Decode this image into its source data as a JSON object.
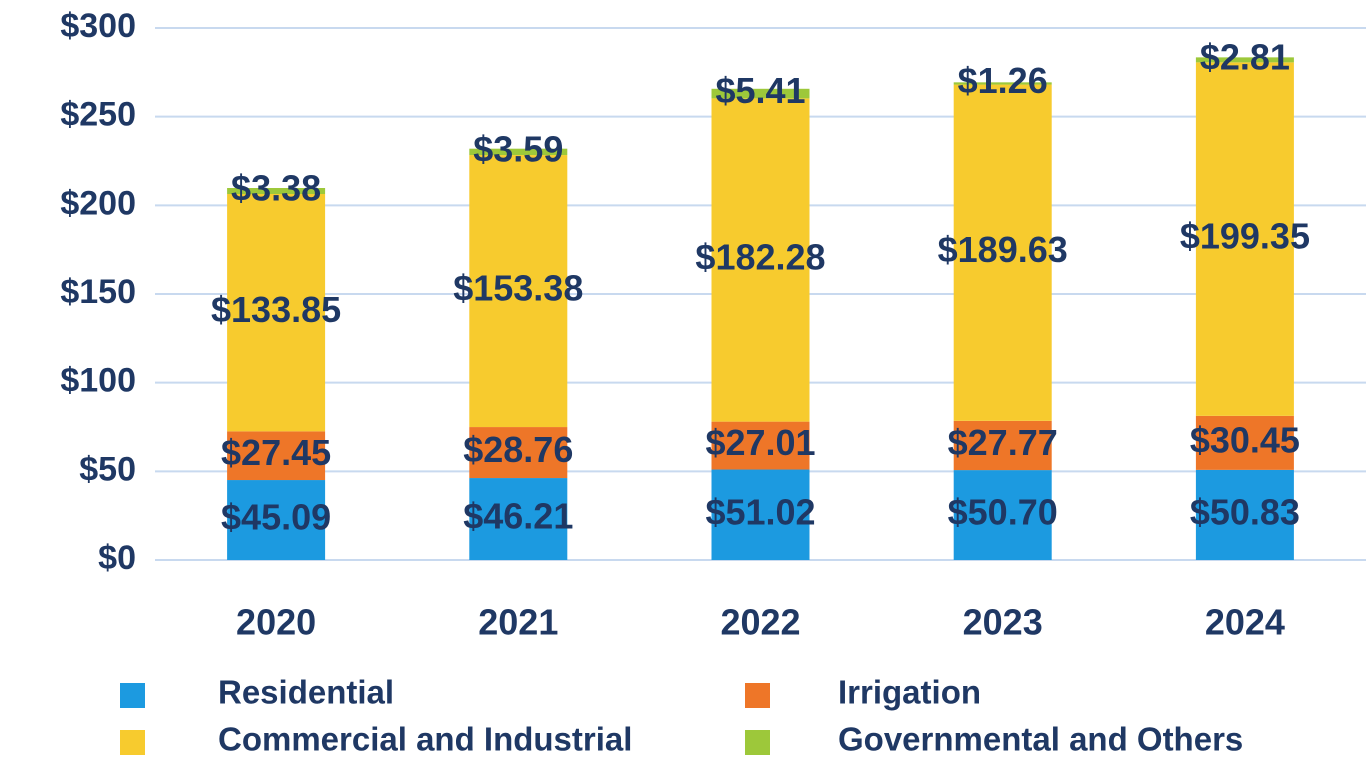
{
  "chart_data": {
    "type": "stacked_bar",
    "categories": [
      "2020",
      "2021",
      "2022",
      "2023",
      "2024"
    ],
    "series": [
      {
        "name": "Residential",
        "color": "#1c9ae0",
        "values": [
          45.09,
          46.21,
          51.02,
          50.7,
          50.83
        ],
        "value_labels": [
          "$45.09",
          "$46.21",
          "$51.02",
          "$50.70",
          "$50.83"
        ]
      },
      {
        "name": "Irrigation",
        "color": "#ee7628",
        "values": [
          27.45,
          28.76,
          27.01,
          27.77,
          30.45
        ],
        "value_labels": [
          "$27.45",
          "$28.76",
          "$27.01",
          "$27.77",
          "$30.45"
        ]
      },
      {
        "name": "Commercial and Industrial",
        "color": "#f7cb2e",
        "values": [
          133.85,
          153.38,
          182.28,
          189.63,
          199.35
        ],
        "value_labels": [
          "$133.85",
          "$153.38",
          "$182.28",
          "$189.63",
          "$199.35"
        ]
      },
      {
        "name": "Governmental and Others",
        "color": "#9dc83a",
        "values": [
          3.38,
          3.59,
          5.41,
          1.26,
          2.81
        ],
        "value_labels": [
          "$3.38",
          "$3.59",
          "$5.41",
          "$1.26",
          "$2.81"
        ]
      }
    ],
    "ylim": [
      0,
      300
    ],
    "yticks": [
      {
        "value": 0,
        "label": "$0"
      },
      {
        "value": 50,
        "label": "$50"
      },
      {
        "value": 100,
        "label": "$100"
      },
      {
        "value": 150,
        "label": "$150"
      },
      {
        "value": 200,
        "label": "$200"
      },
      {
        "value": 250,
        "label": "$250"
      },
      {
        "value": 300,
        "label": "$300"
      }
    ],
    "grid": true,
    "legend": "bottom"
  }
}
